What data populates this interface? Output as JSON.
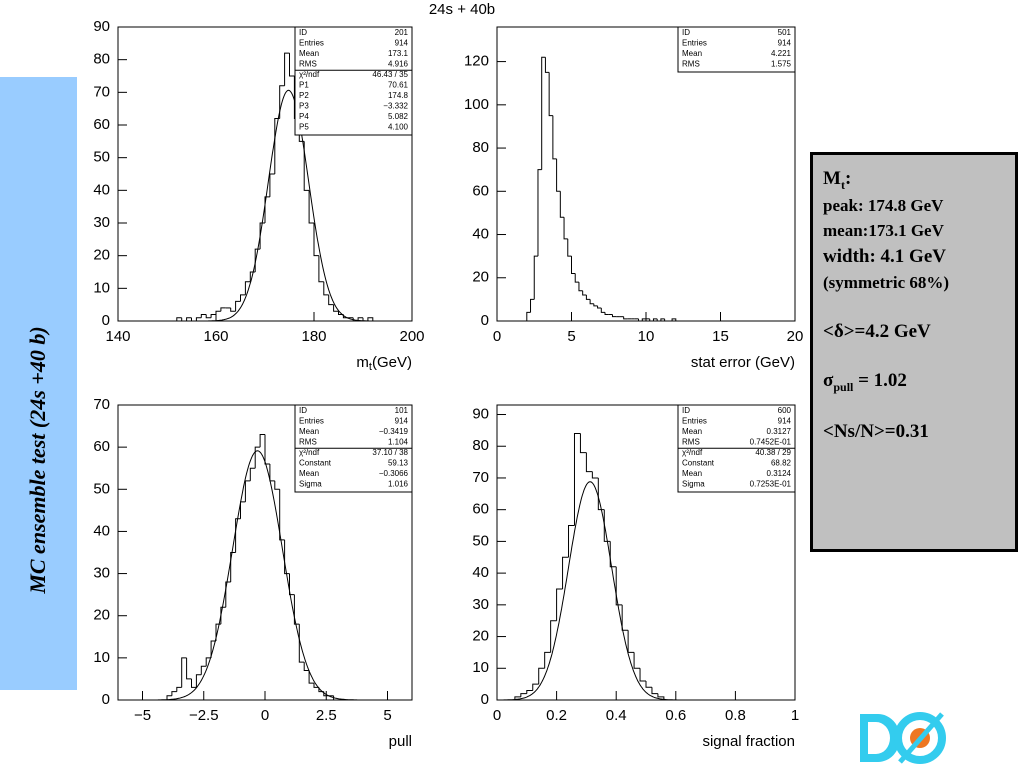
{
  "header": "24s +  40b",
  "side_title": "MC ensemble test (24s +40 b)",
  "info_box": {
    "lines": [
      {
        "main": "M",
        "sub": "t",
        "rest": ":"
      },
      "peak: 174.8 GeV",
      "mean:173.1 GeV",
      "width: 4.1 GeV",
      "(symmetric 68%)",
      "<δ>=4.2 GeV",
      {
        "main": "σ",
        "sub": "pull",
        "rest": " = 1.02"
      },
      "<Ns/N>=0.31"
    ]
  },
  "chart_data": [
    {
      "type": "histogram",
      "xlabel": {
        "main": "m",
        "sub": "t",
        "rest": "(GeV)"
      },
      "xlim": [
        140,
        200
      ],
      "xticks": [
        140,
        160,
        180,
        200
      ],
      "ylim": [
        0,
        90
      ],
      "yticks": [
        0,
        10,
        20,
        30,
        40,
        50,
        60,
        70,
        80,
        90
      ],
      "bins": [
        152,
        153,
        154,
        155,
        156,
        157,
        158,
        159,
        160,
        161,
        162,
        163,
        164,
        165,
        166,
        167,
        168,
        169,
        170,
        171,
        172,
        173,
        174,
        175,
        176,
        177,
        178,
        179,
        180,
        181,
        182,
        183,
        184,
        185,
        186,
        187,
        188,
        189,
        190,
        191,
        192
      ],
      "values": [
        1,
        0,
        1,
        0,
        1,
        2,
        1,
        2,
        3,
        4,
        4,
        3,
        6,
        8,
        12,
        15,
        22,
        30,
        38,
        45,
        62,
        72,
        82,
        75,
        62,
        55,
        40,
        30,
        20,
        12,
        8,
        5,
        3,
        2,
        1,
        1,
        0,
        1,
        0,
        1
      ],
      "stats": [
        [
          "ID",
          "201"
        ],
        [
          "Entries",
          "914"
        ],
        [
          "Mean",
          "173.1"
        ],
        [
          "RMS",
          "4.916"
        ],
        [
          "χ²/ndf",
          "46.43   /   35"
        ],
        [
          "P1",
          "70.61"
        ],
        [
          "P2",
          "174.8"
        ],
        [
          "P3",
          "−3.332"
        ],
        [
          "P4",
          "5.082"
        ],
        [
          "P5",
          "4.100"
        ]
      ]
    },
    {
      "type": "histogram",
      "xlabel": "stat error (GeV)",
      "xlim": [
        0,
        20
      ],
      "xticks": [
        0,
        5,
        10,
        15,
        20
      ],
      "ylim": [
        0,
        136
      ],
      "yticks": [
        0,
        20,
        40,
        60,
        80,
        100,
        120
      ],
      "bins": [
        2,
        2.25,
        2.5,
        2.75,
        3,
        3.25,
        3.5,
        3.75,
        4,
        4.25,
        4.5,
        4.75,
        5,
        5.25,
        5.5,
        5.75,
        6,
        6.25,
        6.5,
        6.75,
        7,
        7.25,
        7.5,
        7.75,
        8,
        8.25,
        8.5,
        8.75,
        9,
        9.25,
        9.5,
        9.75,
        10,
        10.25,
        10.5,
        10.75,
        11,
        11.25,
        11.5,
        11.75,
        12
      ],
      "values": [
        4,
        10,
        30,
        70,
        122,
        115,
        95,
        75,
        60,
        48,
        38,
        30,
        22,
        18,
        14,
        12,
        10,
        8,
        7,
        6,
        4,
        3,
        3,
        2,
        2,
        2,
        1,
        1,
        1,
        1,
        0,
        1,
        1,
        0,
        1,
        0,
        1,
        0,
        0,
        1
      ],
      "stats": [
        [
          "ID",
          "501"
        ],
        [
          "Entries",
          "914"
        ],
        [
          "Mean",
          "4.221"
        ],
        [
          "RMS",
          "1.575"
        ]
      ]
    },
    {
      "type": "histogram",
      "xlabel": "pull",
      "xlim": [
        -6,
        6
      ],
      "xticks": [
        {
          "value": -5,
          "label": "−5"
        },
        {
          "value": -2.5,
          "label": "−2.5"
        },
        0,
        2.5,
        5
      ],
      "ylim": [
        0,
        70
      ],
      "yticks": [
        0,
        10,
        20,
        30,
        40,
        50,
        60,
        70
      ],
      "bins": [
        -4,
        -3.8,
        -3.6,
        -3.4,
        -3.2,
        -3,
        -2.8,
        -2.6,
        -2.4,
        -2.2,
        -2,
        -1.8,
        -1.6,
        -1.4,
        -1.2,
        -1,
        -0.8,
        -0.6,
        -0.4,
        -0.2,
        0,
        0.2,
        0.4,
        0.6,
        0.8,
        1,
        1.2,
        1.4,
        1.6,
        1.8,
        2,
        2.2,
        2.4,
        2.6,
        2.8,
        3
      ],
      "values": [
        1,
        2,
        3,
        10,
        5,
        3,
        6,
        8,
        10,
        14,
        18,
        22,
        28,
        35,
        43,
        47,
        52,
        55,
        60,
        63,
        56,
        52,
        50,
        38,
        30,
        25,
        18,
        9,
        7,
        4,
        3,
        2,
        1,
        1,
        0
      ],
      "stats": [
        [
          "ID",
          "101"
        ],
        [
          "Entries",
          "914"
        ],
        [
          "Mean",
          "−0.3419"
        ],
        [
          "RMS",
          "1.104"
        ],
        [
          "χ²/ndf",
          "37.10   /   38"
        ],
        [
          "Constant",
          "59.13"
        ],
        [
          "Mean",
          "−0.3066"
        ],
        [
          "Sigma",
          "1.016"
        ]
      ]
    },
    {
      "type": "histogram",
      "xlabel": "signal fraction",
      "xlim": [
        0,
        1
      ],
      "xticks": [
        0,
        0.2,
        0.4,
        0.6,
        0.8,
        1
      ],
      "ylim": [
        0,
        93
      ],
      "yticks": [
        0,
        10,
        20,
        30,
        40,
        50,
        60,
        70,
        80,
        90
      ],
      "bins": [
        0.06,
        0.08,
        0.1,
        0.12,
        0.14,
        0.16,
        0.18,
        0.2,
        0.22,
        0.24,
        0.26,
        0.28,
        0.3,
        0.32,
        0.34,
        0.36,
        0.38,
        0.4,
        0.42,
        0.44,
        0.46,
        0.48,
        0.5,
        0.52,
        0.54,
        0.56
      ],
      "values": [
        1,
        2,
        3,
        5,
        10,
        15,
        25,
        35,
        45,
        55,
        84,
        78,
        72,
        70,
        60,
        50,
        42,
        30,
        22,
        15,
        10,
        6,
        4,
        2,
        1
      ],
      "stats": [
        [
          "ID",
          "600"
        ],
        [
          "Entries",
          "914"
        ],
        [
          "Mean",
          "0.3127"
        ],
        [
          "RMS",
          "0.7452E-01"
        ],
        [
          "χ²/ndf",
          "40.38   /   29"
        ],
        [
          "Constant",
          "68.82"
        ],
        [
          "Mean",
          "0.3124"
        ],
        [
          "Sigma",
          "0.7253E-01"
        ]
      ]
    }
  ]
}
